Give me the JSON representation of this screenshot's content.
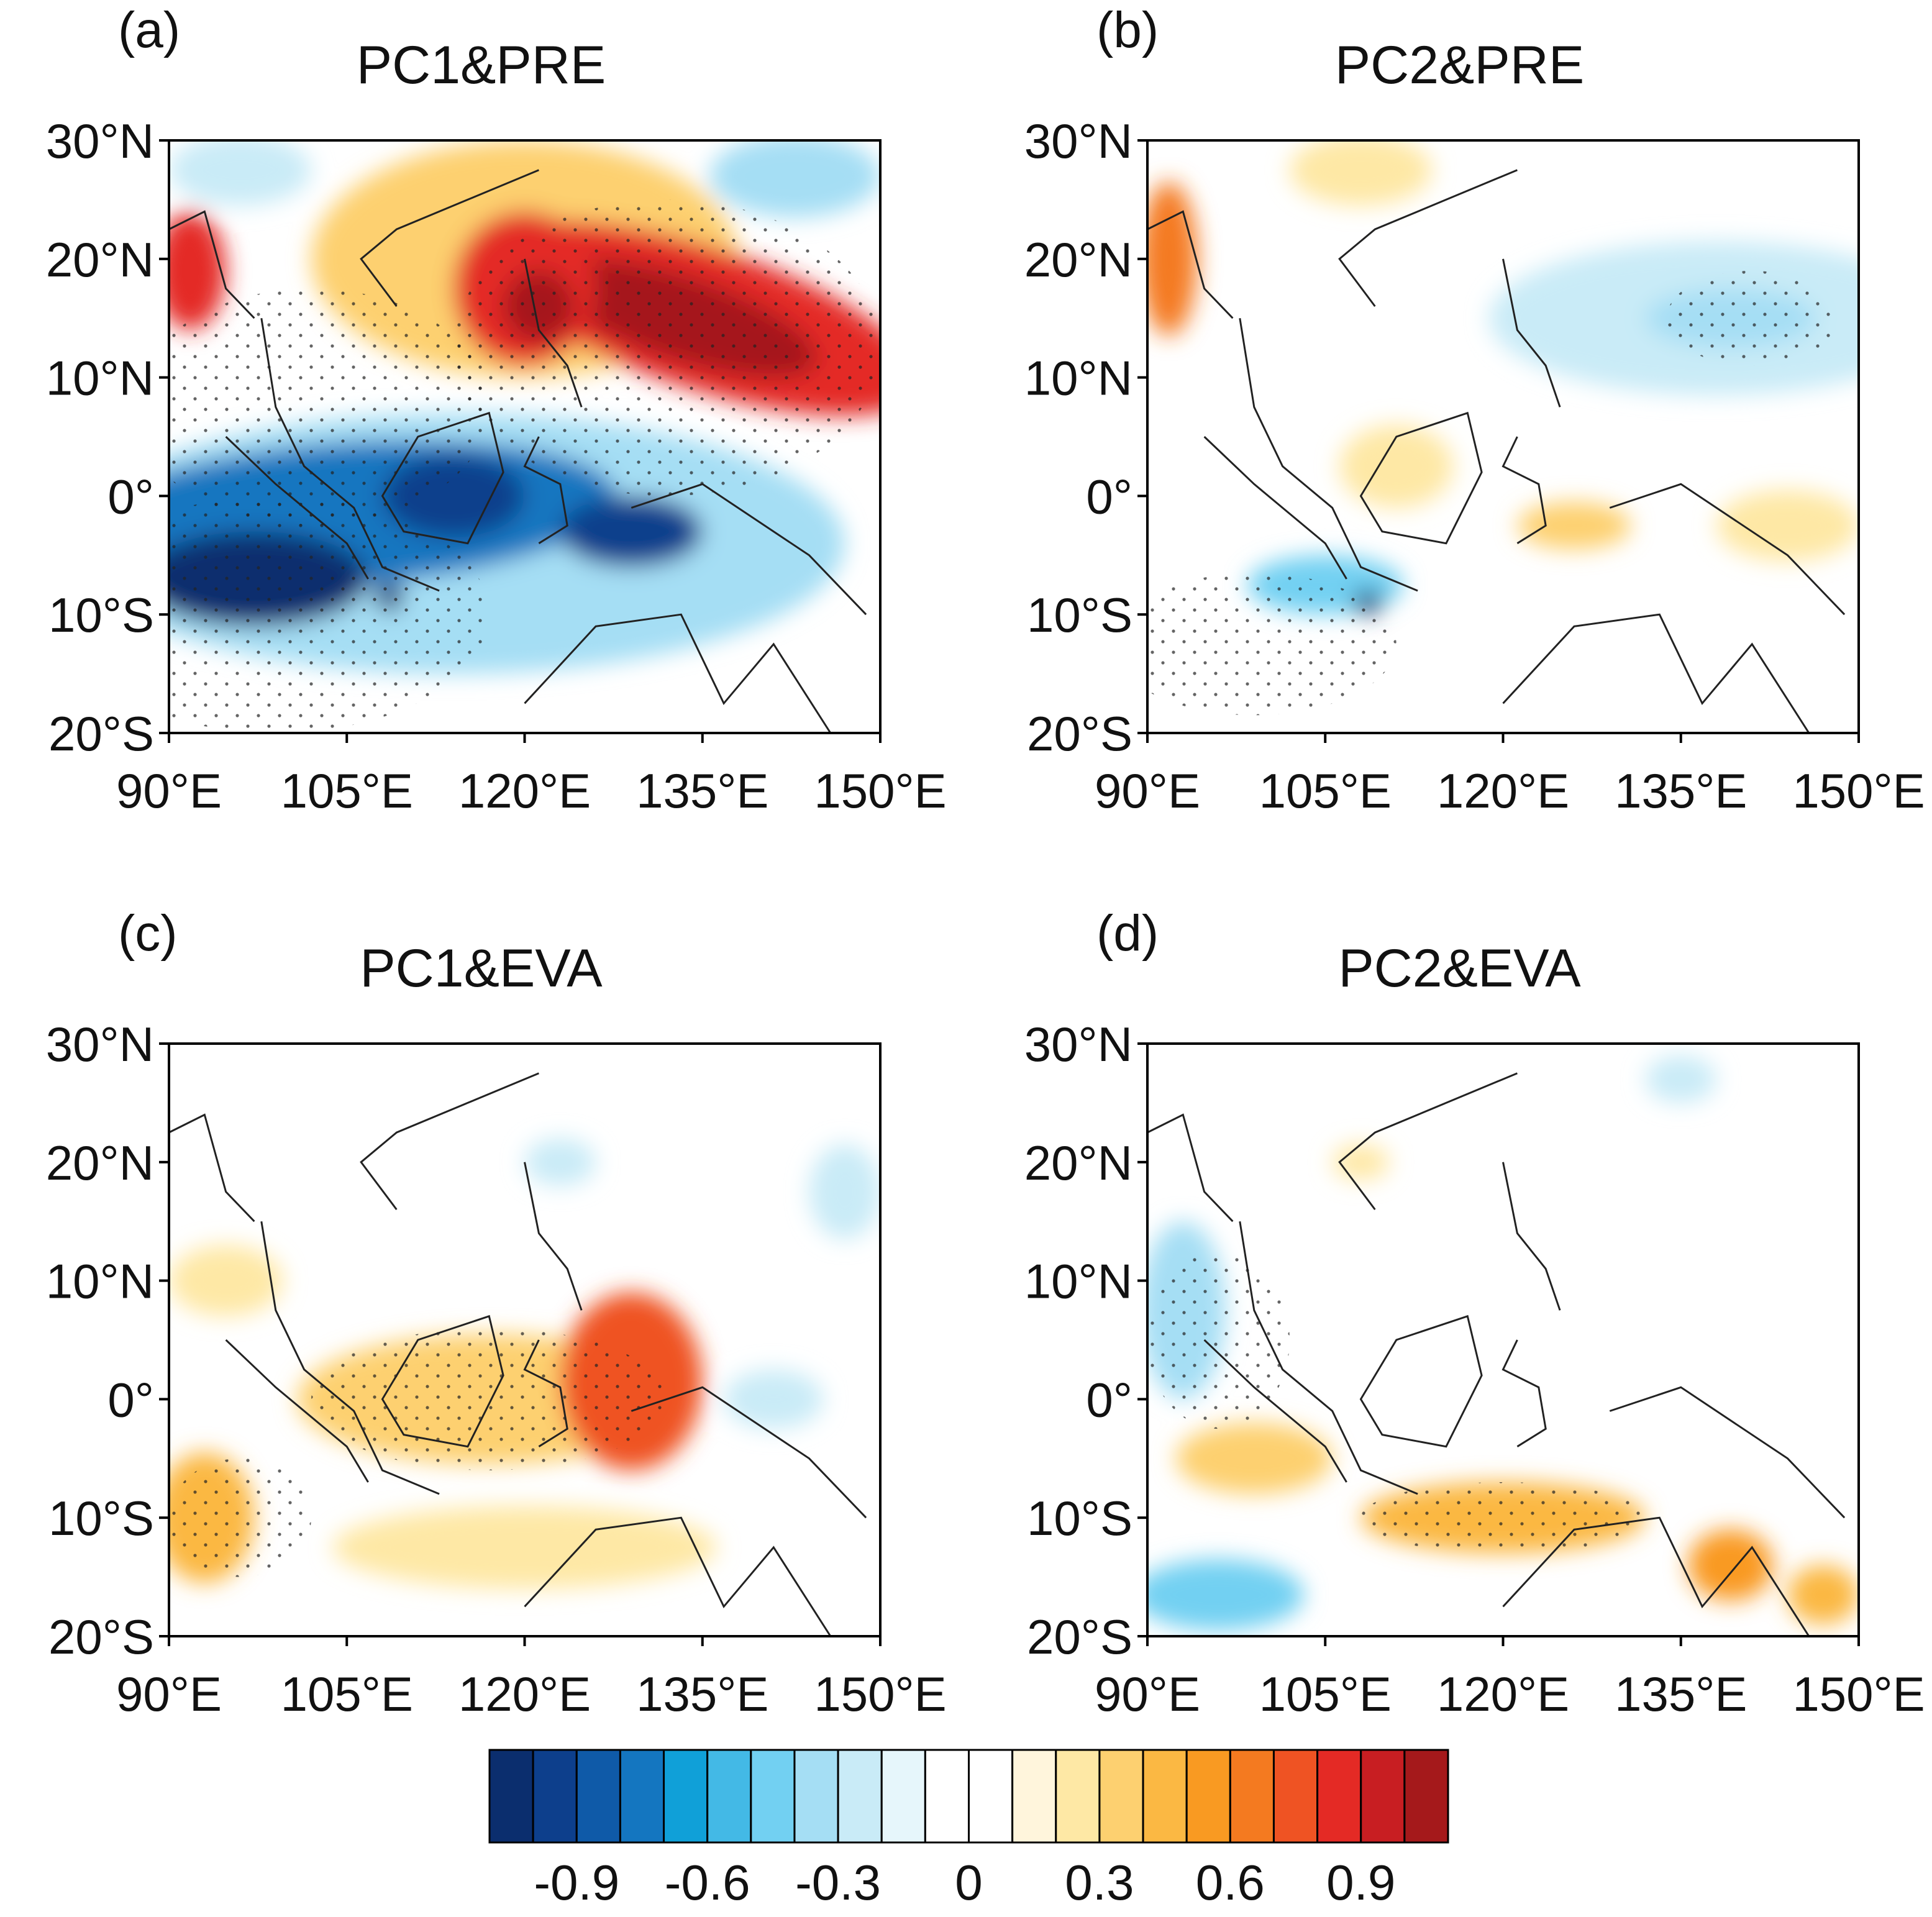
{
  "panels": [
    {
      "label": "(a)",
      "title": "PC1&PRE"
    },
    {
      "label": "(b)",
      "title": "PC2&PRE"
    },
    {
      "label": "(c)",
      "title": "PC1&EVA"
    },
    {
      "label": "(d)",
      "title": "PC2&EVA"
    }
  ],
  "lon_range": [
    90,
    150
  ],
  "lat_range": [
    -20,
    30
  ],
  "lon_ticks": [
    {
      "value": 90,
      "label": "90°E"
    },
    {
      "value": 105,
      "label": "105°E"
    },
    {
      "value": 120,
      "label": "120°E"
    },
    {
      "value": 135,
      "label": "135°E"
    },
    {
      "value": 150,
      "label": "150°E"
    }
  ],
  "lat_ticks": [
    {
      "value": 30,
      "label": "30°N"
    },
    {
      "value": 20,
      "label": "20°N"
    },
    {
      "value": 10,
      "label": "10°N"
    },
    {
      "value": 0,
      "label": "0°"
    },
    {
      "value": -10,
      "label": "10°S"
    },
    {
      "value": -20,
      "label": "20°S"
    }
  ],
  "colorbar": {
    "clim": [
      -1.1,
      1.1
    ],
    "colors": [
      "#0b2e6e",
      "#0d3f8c",
      "#0f5aa8",
      "#1476c0",
      "#10a0d8",
      "#43b9e6",
      "#72d0f2",
      "#a5def4",
      "#c9ebf7",
      "#e6f6fb",
      "#ffffff",
      "#ffffff",
      "#fff5dc",
      "#fee8a5",
      "#fdd070",
      "#fbb843",
      "#f99a22",
      "#f47a20",
      "#ef5323",
      "#e42a25",
      "#c81e22",
      "#a5191b"
    ],
    "ticks": [
      -0.9,
      -0.6,
      -0.3,
      0,
      0.3,
      0.6,
      0.9
    ]
  }
}
